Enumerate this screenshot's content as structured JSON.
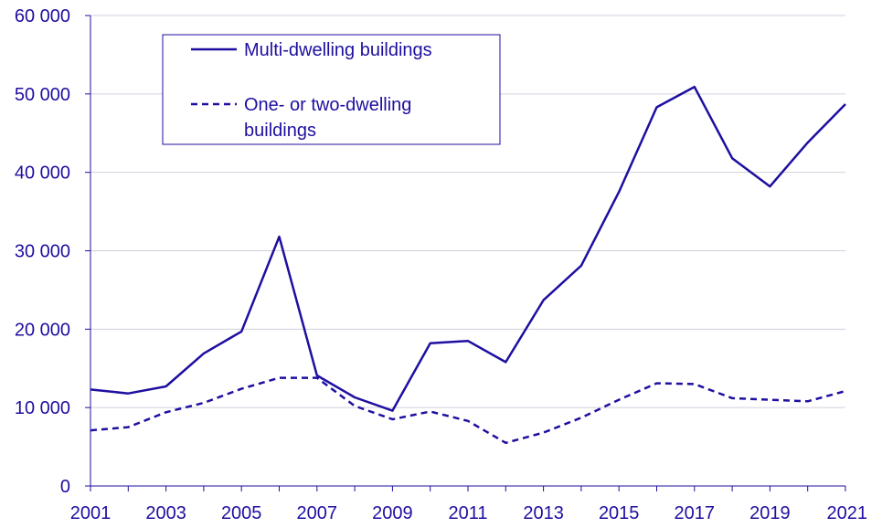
{
  "chart_data": {
    "type": "line",
    "title": "",
    "xlabel": "",
    "ylabel": "",
    "x": [
      2001,
      2002,
      2003,
      2004,
      2005,
      2006,
      2007,
      2008,
      2009,
      2010,
      2011,
      2012,
      2013,
      2014,
      2015,
      2016,
      2017,
      2018,
      2019,
      2020,
      2021
    ],
    "x_tick_labels": [
      "2001",
      "2003",
      "2005",
      "2007",
      "2009",
      "2011",
      "2013",
      "2015",
      "2017",
      "2019",
      "2021"
    ],
    "y_tick_labels": [
      "0",
      "10 000",
      "20 000",
      "30 000",
      "40 000",
      "50 000",
      "60 000"
    ],
    "ylim": [
      0,
      60000
    ],
    "grid": "horizontal",
    "legend_position": "top-left",
    "series": [
      {
        "name": "Multi-dwelling buildings",
        "style": "solid",
        "values": [
          12300,
          11800,
          12700,
          16900,
          19700,
          31800,
          14100,
          11300,
          9600,
          18200,
          18500,
          15800,
          23700,
          28100,
          37500,
          48300,
          50900,
          41800,
          38200,
          43800,
          48700
        ]
      },
      {
        "name": "One- or two-dwelling buildings",
        "name_lines": [
          "One- or two-dwelling",
          "buildings"
        ],
        "style": "dashed",
        "values": [
          7100,
          7500,
          9400,
          10600,
          12400,
          13800,
          13800,
          10200,
          8500,
          9500,
          8300,
          5500,
          6800,
          8700,
          11000,
          13100,
          13000,
          11200,
          11000,
          10800,
          12100
        ]
      }
    ],
    "colors": {
      "line": "#1e0fa0",
      "grid": "#d0d0dc",
      "axis": "#1e0fa0",
      "text": "#1e0fa0"
    }
  }
}
